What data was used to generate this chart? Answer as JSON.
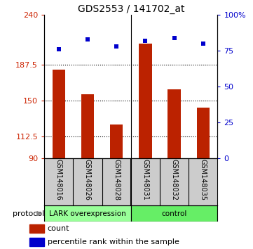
{
  "title": "GDS2553 / 141702_at",
  "samples": [
    "GSM148016",
    "GSM148026",
    "GSM148028",
    "GSM148031",
    "GSM148032",
    "GSM148035"
  ],
  "counts": [
    183,
    157,
    125,
    210,
    162,
    143
  ],
  "percentile_ranks": [
    76,
    83,
    78,
    82,
    84,
    80
  ],
  "ymin": 90,
  "ymax": 240,
  "yticks_left": [
    90,
    112.5,
    150,
    187.5,
    240
  ],
  "ytick_labels_left": [
    "90",
    "112.5",
    "150",
    "187.5",
    "240"
  ],
  "yticks_right": [
    0,
    25,
    50,
    75,
    100
  ],
  "ytick_labels_right": [
    "0",
    "25",
    "50",
    "75",
    "100%"
  ],
  "bar_color": "#bb2200",
  "dot_color": "#0000cc",
  "group1_label": "LARK overexpression",
  "group2_label": "control",
  "group1_color": "#99ff99",
  "group2_color": "#66ee66",
  "protocol_label": "protocol",
  "legend_count_label": "count",
  "legend_pct_label": "percentile rank within the sample",
  "left_tick_color": "#cc2200",
  "right_tick_color": "#0000cc",
  "label_bg_color": "#cccccc",
  "bar_width": 0.45,
  "grid_yticks": [
    112.5,
    150,
    187.5
  ]
}
